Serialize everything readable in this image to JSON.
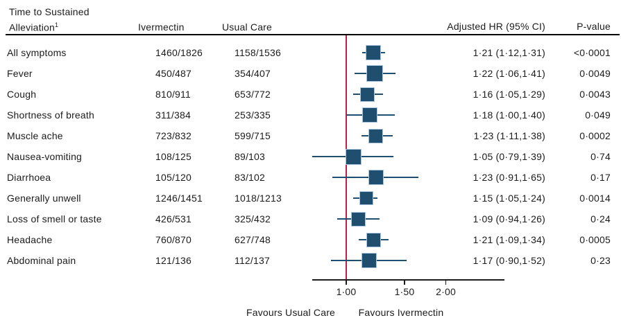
{
  "header": {
    "symptom_col_line1": "Time to Sustained",
    "symptom_col_line2": "Alleviation",
    "symptom_col_superscript": "1",
    "ivermectin_col": "Ivermectin",
    "usual_care_col": "Usual Care",
    "hr_col": "Adjusted HR (95% CI)",
    "pvalue_col": "P-value"
  },
  "chart_data": {
    "type": "forest",
    "x_scale": "log",
    "x_ticks": [
      "1·00",
      "1·50",
      "2·00"
    ],
    "x_tick_values": [
      1.0,
      1.5,
      2.0
    ],
    "x_range": [
      0.79,
      3.0
    ],
    "reference_line_value": 1.0,
    "reference_line_color": "#BE2148",
    "marker_color": "#1F4E6E",
    "marker_border_color": "#A9C7E2",
    "grid": false,
    "footer_left": "Favours Usual Care",
    "footer_right": "Favours Ivermectin",
    "rows": [
      {
        "label": "All symptoms",
        "ivermectin": "1460/1826",
        "usual_care": "1158/1536",
        "hr": 1.21,
        "ci_low": 1.12,
        "ci_high": 1.31,
        "hr_ci_text": "1·21 (1·12,1·31)",
        "p_value": "<0·0001",
        "marker_size_px": 22
      },
      {
        "label": "Fever",
        "ivermectin": "450/487",
        "usual_care": "354/407",
        "hr": 1.22,
        "ci_low": 1.06,
        "ci_high": 1.41,
        "hr_ci_text": "1·22 (1·06,1·41)",
        "p_value": "0·0049",
        "marker_size_px": 24
      },
      {
        "label": "Cough",
        "ivermectin": "810/911",
        "usual_care": "653/772",
        "hr": 1.16,
        "ci_low": 1.05,
        "ci_high": 1.29,
        "hr_ci_text": "1·16 (1·05,1·29)",
        "p_value": "0·0043",
        "marker_size_px": 21
      },
      {
        "label": "Shortness of breath",
        "ivermectin": "311/384",
        "usual_care": "253/335",
        "hr": 1.18,
        "ci_low": 1.0,
        "ci_high": 1.4,
        "hr_ci_text": "1·18 (1·00,1·40)",
        "p_value": "0·049",
        "marker_size_px": 22
      },
      {
        "label": "Muscle ache",
        "ivermectin": "723/832",
        "usual_care": "599/715",
        "hr": 1.23,
        "ci_low": 1.11,
        "ci_high": 1.38,
        "hr_ci_text": "1·23 (1·11,1·38)",
        "p_value": "0·0002",
        "marker_size_px": 21
      },
      {
        "label": "Nausea-vomiting",
        "ivermectin": "108/125",
        "usual_care": "89/103",
        "hr": 1.05,
        "ci_low": 0.79,
        "ci_high": 1.39,
        "hr_ci_text": "1·05 (0·79,1·39)",
        "p_value": "0·74",
        "marker_size_px": 23
      },
      {
        "label": "Diarrhoea",
        "ivermectin": "105/120",
        "usual_care": "83/102",
        "hr": 1.23,
        "ci_low": 0.91,
        "ci_high": 1.65,
        "hr_ci_text": "1·23 (0·91,1·65)",
        "p_value": "0·17",
        "marker_size_px": 22
      },
      {
        "label": "Generally unwell",
        "ivermectin": "1246/1451",
        "usual_care": "1018/1213",
        "hr": 1.15,
        "ci_low": 1.05,
        "ci_high": 1.24,
        "hr_ci_text": "1·15 (1·05,1·24)",
        "p_value": "0·0014",
        "marker_size_px": 20
      },
      {
        "label": "Loss of smell or taste",
        "ivermectin": "426/531",
        "usual_care": "325/432",
        "hr": 1.09,
        "ci_low": 0.94,
        "ci_high": 1.26,
        "hr_ci_text": "1·09 (0·94,1·26)",
        "p_value": "0·24",
        "marker_size_px": 21
      },
      {
        "label": "Headache",
        "ivermectin": "760/870",
        "usual_care": "627/748",
        "hr": 1.21,
        "ci_low": 1.09,
        "ci_high": 1.34,
        "hr_ci_text": "1·21 (1·09,1·34)",
        "p_value": "0·0005",
        "marker_size_px": 21
      },
      {
        "label": "Abdominal pain",
        "ivermectin": "121/136",
        "usual_care": "112/137",
        "hr": 1.17,
        "ci_low": 0.9,
        "ci_high": 1.52,
        "hr_ci_text": "1·17 (0·90,1·52)",
        "p_value": "0·23",
        "marker_size_px": 22
      }
    ]
  }
}
